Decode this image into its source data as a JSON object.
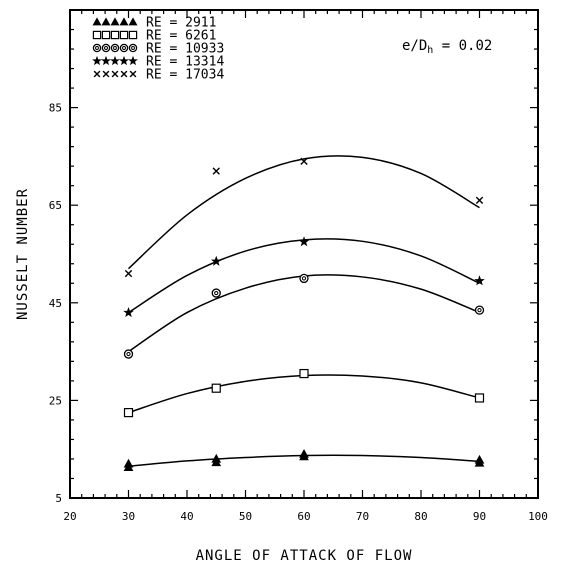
{
  "chart_data": {
    "type": "scatter",
    "xlabel": "ANGLE OF ATTACK OF FLOW",
    "ylabel": "NUSSELT NUMBER",
    "xlim": [
      20,
      100
    ],
    "ylim": [
      5,
      105
    ],
    "xticks": [
      20,
      30,
      40,
      50,
      60,
      70,
      80,
      90,
      100
    ],
    "yticks": [
      5,
      25,
      45,
      65,
      85
    ],
    "annotation": "e/D = 0.02",
    "annotation_subscript": "h",
    "legend_position": "top-left",
    "grid": false,
    "series": [
      {
        "name": "RE = 2911",
        "marker": "triangle-filled",
        "x": [
          30,
          30,
          45,
          45,
          60,
          60,
          90,
          90
        ],
        "y": [
          12.0,
          11.3,
          13.0,
          12.3,
          14.0,
          13.5,
          12.8,
          12.2
        ],
        "fit": [
          [
            30,
            11.5
          ],
          [
            40,
            12.6
          ],
          [
            50,
            13.3
          ],
          [
            60,
            13.7
          ],
          [
            70,
            13.7
          ],
          [
            80,
            13.3
          ],
          [
            90,
            12.5
          ]
        ]
      },
      {
        "name": "RE = 6261",
        "marker": "square",
        "x": [
          30,
          45,
          60,
          90
        ],
        "y": [
          22.5,
          27.5,
          30.5,
          25.5
        ],
        "fit": [
          [
            30,
            22.5
          ],
          [
            40,
            26.4
          ],
          [
            50,
            28.9
          ],
          [
            60,
            30.1
          ],
          [
            70,
            30.0
          ],
          [
            80,
            28.6
          ],
          [
            90,
            25.5
          ]
        ]
      },
      {
        "name": "RE = 10933",
        "marker": "circle",
        "x": [
          30,
          45,
          60,
          90
        ],
        "y": [
          34.5,
          47.0,
          50.0,
          43.5
        ],
        "fit": [
          [
            30,
            35.0
          ],
          [
            40,
            43.0
          ],
          [
            50,
            48.0
          ],
          [
            60,
            50.5
          ],
          [
            70,
            50.3
          ],
          [
            80,
            47.8
          ],
          [
            90,
            43.0
          ]
        ]
      },
      {
        "name": "RE = 13314",
        "marker": "star",
        "x": [
          30,
          45,
          60,
          90
        ],
        "y": [
          43.0,
          53.5,
          57.5,
          49.5
        ],
        "fit": [
          [
            30,
            43.0
          ],
          [
            40,
            50.6
          ],
          [
            50,
            55.6
          ],
          [
            60,
            57.9
          ],
          [
            70,
            57.6
          ],
          [
            80,
            54.6
          ],
          [
            90,
            49.0
          ]
        ]
      },
      {
        "name": "RE = 17034",
        "marker": "cross",
        "x": [
          30,
          45,
          60,
          90
        ],
        "y": [
          51.0,
          72.0,
          74.0,
          66.0
        ],
        "fit": [
          [
            30,
            52.0
          ],
          [
            40,
            63.0
          ],
          [
            50,
            70.5
          ],
          [
            60,
            74.5
          ],
          [
            70,
            74.8
          ],
          [
            80,
            71.5
          ],
          [
            90,
            64.5
          ]
        ]
      }
    ]
  }
}
